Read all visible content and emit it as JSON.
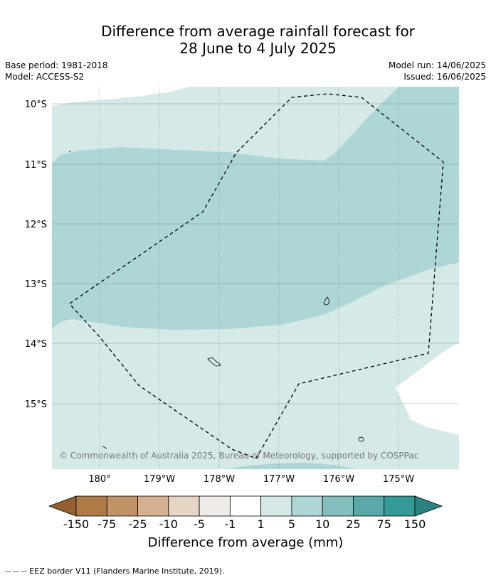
{
  "title": {
    "line1": "Difference from average rainfall forecast for",
    "line2": "28 June to 4 July 2025"
  },
  "meta": {
    "base_period": "Base period: 1981-2018",
    "model": "Model: ACCESS-S2",
    "model_run": "Model run: 14/06/2025",
    "issued": "Issued: 16/06/2025"
  },
  "map": {
    "lat_labels": [
      "10°S",
      "11°S",
      "12°S",
      "13°S",
      "14°S",
      "15°S"
    ],
    "lon_labels": [
      "180°",
      "179°W",
      "178°W",
      "177°W",
      "176°W",
      "175°W"
    ],
    "copyright": "© Commonwealth of Australia 2025, Bureau of Meteorology, supported by COSPPac",
    "colors": {
      "light_wet": "#d5e9e8",
      "mid_wet": "#afd6d6",
      "eez_border": "#000000",
      "gridline": "#555555"
    }
  },
  "colorbar": {
    "title": "Difference from average (mm)",
    "ticks": [
      "-150",
      "-75",
      "-25",
      "-10",
      "-5",
      "-1",
      "1",
      "5",
      "10",
      "25",
      "75",
      "150"
    ],
    "colors": [
      "#946033",
      "#b07a45",
      "#c09467",
      "#d5b091",
      "#e6d4c4",
      "#efebe7",
      "#ffffff",
      "#d5e9e8",
      "#afd6d6",
      "#84bfbf",
      "#5aa9a8",
      "#339a98",
      "#2b8281"
    ]
  },
  "footer": "-- -- -- EEZ border V11 (Flanders Marine Institute, 2019)."
}
